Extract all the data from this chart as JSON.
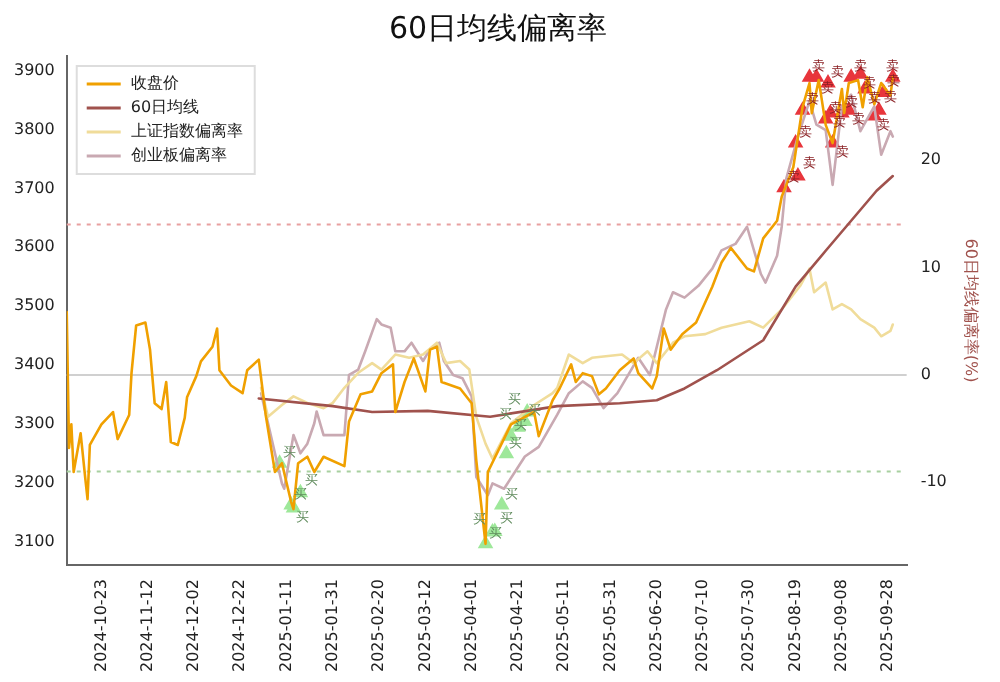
{
  "chart_data": {
    "type": "line",
    "title": "60日均线偏离率",
    "y2label": "60日均线偏离率(%)",
    "legend": "top left",
    "grid": false,
    "xlim": [
      "2024-10-08",
      "2025-10-06"
    ],
    "xticks": [
      "2024-10-23",
      "2024-11-12",
      "2024-12-02",
      "2024-12-22",
      "2025-01-11",
      "2025-01-31",
      "2025-02-20",
      "2025-03-12",
      "2025-04-01",
      "2025-04-21",
      "2025-05-11",
      "2025-05-31",
      "2025-06-20",
      "2025-07-10",
      "2025-07-30",
      "2025-08-19",
      "2025-09-08",
      "2025-09-28"
    ],
    "ylim": [
      3060,
      3925
    ],
    "yticks": [
      3100,
      3200,
      3300,
      3400,
      3500,
      3600,
      3700,
      3800,
      3900
    ],
    "y2lim": [
      -17.7,
      29.7
    ],
    "y2ticks": [
      -10,
      0,
      10,
      20
    ],
    "ref_lines": [
      {
        "axis": "y2",
        "value": 14,
        "color": "#e8a0a0",
        "line_style": "dotted"
      },
      {
        "axis": "y2",
        "value": 0,
        "color": "#d0d0d0",
        "line_style": "solid"
      },
      {
        "axis": "y2",
        "value": -9,
        "color": "#a8d0a0",
        "line_style": "dotted"
      }
    ],
    "series": [
      {
        "name": "收盘价",
        "type": "line",
        "color": "#f0a000",
        "x": [
          "2024-10-08",
          "2024-10-09",
          "2024-10-10",
          "2024-10-11",
          "2024-10-14",
          "2024-10-16",
          "2024-10-17",
          "2024-10-18",
          "2024-10-23",
          "2024-10-28",
          "2024-10-30",
          "2024-11-04",
          "2024-11-05",
          "2024-11-07",
          "2024-11-11",
          "2024-11-13",
          "2024-11-15",
          "2024-11-18",
          "2024-11-20",
          "2024-11-22",
          "2024-11-25",
          "2024-11-28",
          "2024-11-29",
          "2024-12-03",
          "2024-12-05",
          "2024-12-10",
          "2024-12-12",
          "2024-12-13",
          "2024-12-18",
          "2024-12-23",
          "2024-12-25",
          "2024-12-30",
          "2025-01-02",
          "2025-01-06",
          "2025-01-09",
          "2025-01-13",
          "2025-01-14",
          "2025-01-16",
          "2025-01-20",
          "2025-01-23",
          "2025-01-27",
          "2025-02-05",
          "2025-02-07",
          "2025-02-12",
          "2025-02-17",
          "2025-02-21",
          "2025-02-26",
          "2025-02-27",
          "2025-03-03",
          "2025-03-07",
          "2025-03-12",
          "2025-03-14",
          "2025-03-17",
          "2025-03-19",
          "2025-03-27",
          "2025-04-01",
          "2025-04-03",
          "2025-04-07",
          "2025-04-08",
          "2025-04-18",
          "2025-04-28",
          "2025-04-30",
          "2025-05-06",
          "2025-05-09",
          "2025-05-14",
          "2025-05-16",
          "2025-05-19",
          "2025-05-23",
          "2025-05-26",
          "2025-05-29",
          "2025-06-04",
          "2025-06-10",
          "2025-06-12",
          "2025-06-18",
          "2025-06-20",
          "2025-06-23",
          "2025-06-26",
          "2025-07-01",
          "2025-07-07",
          "2025-07-14",
          "2025-07-18",
          "2025-07-22",
          "2025-07-29",
          "2025-08-01",
          "2025-08-05",
          "2025-08-11",
          "2025-08-13",
          "2025-08-18",
          "2025-08-20",
          "2025-08-22",
          "2025-08-25",
          "2025-08-26",
          "2025-08-29",
          "2025-09-01",
          "2025-09-04",
          "2025-09-08",
          "2025-09-09",
          "2025-09-11",
          "2025-09-15",
          "2025-09-17",
          "2025-09-19",
          "2025-09-22",
          "2025-09-25",
          "2025-09-29",
          "2025-09-30"
        ],
        "values": [
          3490,
          3259,
          3299,
          3218,
          3284,
          3208,
          3172,
          3264,
          3299,
          3320,
          3274,
          3315,
          3386,
          3467,
          3472,
          3426,
          3335,
          3325,
          3371,
          3269,
          3264,
          3310,
          3345,
          3381,
          3406,
          3431,
          3462,
          3391,
          3365,
          3352,
          3391,
          3409,
          3315,
          3218,
          3233,
          3167,
          3155,
          3233,
          3244,
          3218,
          3244,
          3228,
          3304,
          3350,
          3355,
          3386,
          3401,
          3320,
          3371,
          3411,
          3355,
          3426,
          3431,
          3371,
          3360,
          3335,
          3238,
          3096,
          3218,
          3299,
          3320,
          3279,
          3340,
          3360,
          3401,
          3371,
          3386,
          3381,
          3350,
          3360,
          3391,
          3411,
          3386,
          3360,
          3381,
          3462,
          3426,
          3452,
          3472,
          3533,
          3574,
          3599,
          3564,
          3559,
          3615,
          3645,
          3686,
          3736,
          3787,
          3838,
          3879,
          3828,
          3884,
          3808,
          3777,
          3869,
          3828,
          3879,
          3884,
          3838,
          3889,
          3843,
          3879,
          3858,
          3889
        ]
      },
      {
        "name": "60日均线",
        "type": "line",
        "color": "#a0524d",
        "x": [
          "2024-12-30",
          "2025-01-31",
          "2025-02-17",
          "2025-03-13",
          "2025-04-09",
          "2025-05-08",
          "2025-06-04",
          "2025-06-20",
          "2025-07-02",
          "2025-07-16",
          "2025-08-05",
          "2025-08-19",
          "2025-09-01",
          "2025-09-12",
          "2025-09-23",
          "2025-09-30"
        ],
        "values": [
          3343,
          3330,
          3320,
          3322,
          3312,
          3330,
          3335,
          3340,
          3360,
          3391,
          3442,
          3533,
          3594,
          3645,
          3696,
          3721
        ]
      },
      {
        "name": "上证指数偏离率",
        "type": "line",
        "axis": "y2",
        "color": "#f0dc9a",
        "x": [
          "2024-12-31",
          "2025-01-03",
          "2025-01-09",
          "2025-01-14",
          "2025-01-20",
          "2025-01-27",
          "2025-01-31",
          "2025-02-05",
          "2025-02-11",
          "2025-02-17",
          "2025-02-21",
          "2025-02-27",
          "2025-03-05",
          "2025-03-11",
          "2025-03-17",
          "2025-03-21",
          "2025-03-27",
          "2025-03-31",
          "2025-04-03",
          "2025-04-07",
          "2025-04-10",
          "2025-04-18",
          "2025-04-28",
          "2025-05-06",
          "2025-05-08",
          "2025-05-13",
          "2025-05-19",
          "2025-05-23",
          "2025-06-05",
          "2025-06-10",
          "2025-06-16",
          "2025-06-20",
          "2025-06-27",
          "2025-07-02",
          "2025-07-11",
          "2025-07-18",
          "2025-07-30",
          "2025-08-05",
          "2025-08-13",
          "2025-08-21",
          "2025-08-25",
          "2025-08-27",
          "2025-09-01",
          "2025-09-04",
          "2025-09-08",
          "2025-09-12",
          "2025-09-16",
          "2025-09-22",
          "2025-09-25",
          "2025-09-29",
          "2025-09-30"
        ],
        "values": [
          -1.2,
          -3.9,
          -2.8,
          -2,
          -2.6,
          -3.1,
          -2.6,
          -1.2,
          0.2,
          1.1,
          0.5,
          1.9,
          1.6,
          1.9,
          3,
          1.1,
          1.3,
          0.5,
          -3.9,
          -6.4,
          -7.8,
          -4.5,
          -2.8,
          -1.7,
          -1.2,
          1.9,
          1.1,
          1.6,
          1.9,
          1.1,
          2.2,
          1.1,
          3,
          3.6,
          3.8,
          4.4,
          5,
          4.4,
          6.1,
          8.3,
          9.9,
          7.7,
          8.6,
          6.1,
          6.6,
          6.1,
          5.2,
          4.4,
          3.6,
          4.1,
          4.7
        ]
      },
      {
        "name": "创业板偏离率",
        "type": "line",
        "axis": "y2",
        "color": "#c9a9b2",
        "x": [
          "2024-12-31",
          "2025-01-09",
          "2025-01-10",
          "2025-01-14",
          "2025-01-17",
          "2025-01-20",
          "2025-01-23",
          "2025-01-24",
          "2025-01-27",
          "2025-02-05",
          "2025-02-07",
          "2025-02-11",
          "2025-02-14",
          "2025-02-19",
          "2025-02-21",
          "2025-02-25",
          "2025-02-27",
          "2025-03-03",
          "2025-03-06",
          "2025-03-11",
          "2025-03-14",
          "2025-03-18",
          "2025-03-20",
          "2025-03-24",
          "2025-03-28",
          "2025-04-01",
          "2025-04-03",
          "2025-04-08",
          "2025-04-10",
          "2025-04-15",
          "2025-04-24",
          "2025-04-30",
          "2025-05-08",
          "2025-05-13",
          "2025-05-19",
          "2025-05-23",
          "2025-05-28",
          "2025-06-03",
          "2025-06-09",
          "2025-06-12",
          "2025-06-17",
          "2025-06-24",
          "2025-06-27",
          "2025-07-02",
          "2025-07-08",
          "2025-07-14",
          "2025-07-18",
          "2025-07-24",
          "2025-07-29",
          "2025-08-04",
          "2025-08-06",
          "2025-08-11",
          "2025-08-13",
          "2025-08-15",
          "2025-08-20",
          "2025-08-25",
          "2025-08-28",
          "2025-09-01",
          "2025-09-04",
          "2025-09-08",
          "2025-09-12",
          "2025-09-16",
          "2025-09-22",
          "2025-09-25",
          "2025-09-29",
          "2025-09-30"
        ],
        "values": [
          -1.7,
          -10.1,
          -10.6,
          -5.6,
          -7.3,
          -6.4,
          -4.5,
          -3.4,
          -5.6,
          -5.6,
          0,
          0.5,
          2.2,
          5.2,
          4.7,
          4.4,
          2.2,
          2.2,
          3,
          1.3,
          2.4,
          3,
          1.3,
          0,
          -0.3,
          -2,
          -9.5,
          -11.2,
          -10.1,
          -10.6,
          -7.6,
          -6.7,
          -3.7,
          -1.7,
          -0.6,
          -1.2,
          -3.1,
          -1.7,
          0.5,
          1.6,
          0,
          6.1,
          7.7,
          7.2,
          8.3,
          9.9,
          11.6,
          12.2,
          13.8,
          9.4,
          8.6,
          11.1,
          13.8,
          18.3,
          22.2,
          25.5,
          23.3,
          22.8,
          17.7,
          25,
          26.1,
          22.7,
          25,
          20.5,
          22.7,
          22.2
        ]
      },
      {
        "type": "scatter",
        "marker": "triangle",
        "color": "#e8363c",
        "x": [
          "2025-08-14",
          "2025-08-19",
          "2025-08-20",
          "2025-08-22",
          "2025-08-25",
          "2025-08-28",
          "2025-09-01",
          "2025-09-02",
          "2025-09-03",
          "2025-09-04",
          "2025-09-08",
          "2025-09-11",
          "2025-09-12",
          "2025-09-16",
          "2025-09-18",
          "2025-09-22",
          "2025-09-24",
          "2025-09-26",
          "2025-09-30"
        ],
        "values": [
          3701,
          3777,
          3721,
          3833,
          3889,
          3889,
          3818,
          3879,
          3828,
          3777,
          3828,
          3833,
          3889,
          3894,
          3869,
          3823,
          3833,
          3863,
          3889
        ],
        "value_labels": [
          "卖",
          "卖",
          "卖",
          "卖",
          "卖",
          "卖",
          "卖",
          "卖",
          "卖",
          "卖",
          "卖",
          "卖",
          "卖",
          "卖",
          "卖",
          "卖",
          "卖",
          "卖",
          "卖"
        ]
      },
      {
        "type": "scatter",
        "marker": "triangle",
        "color": "#9ee89a",
        "x": [
          "2025-01-08",
          "2025-01-13",
          "2025-01-14",
          "2025-01-17",
          "2025-04-07",
          "2025-04-10",
          "2025-04-11",
          "2025-04-14",
          "2025-04-16",
          "2025-04-18",
          "2025-04-21",
          "2025-04-24",
          "2025-04-25"
        ],
        "values": [
          3233,
          3162,
          3157,
          3183,
          3096,
          3116,
          3117,
          3162,
          3249,
          3279,
          3294,
          3304,
          3320
        ],
        "value_labels": [
          "买",
          "买",
          "买",
          "买",
          "买",
          "买",
          "买",
          "买",
          "买",
          "买",
          "买",
          "买",
          "买"
        ]
      }
    ]
  }
}
